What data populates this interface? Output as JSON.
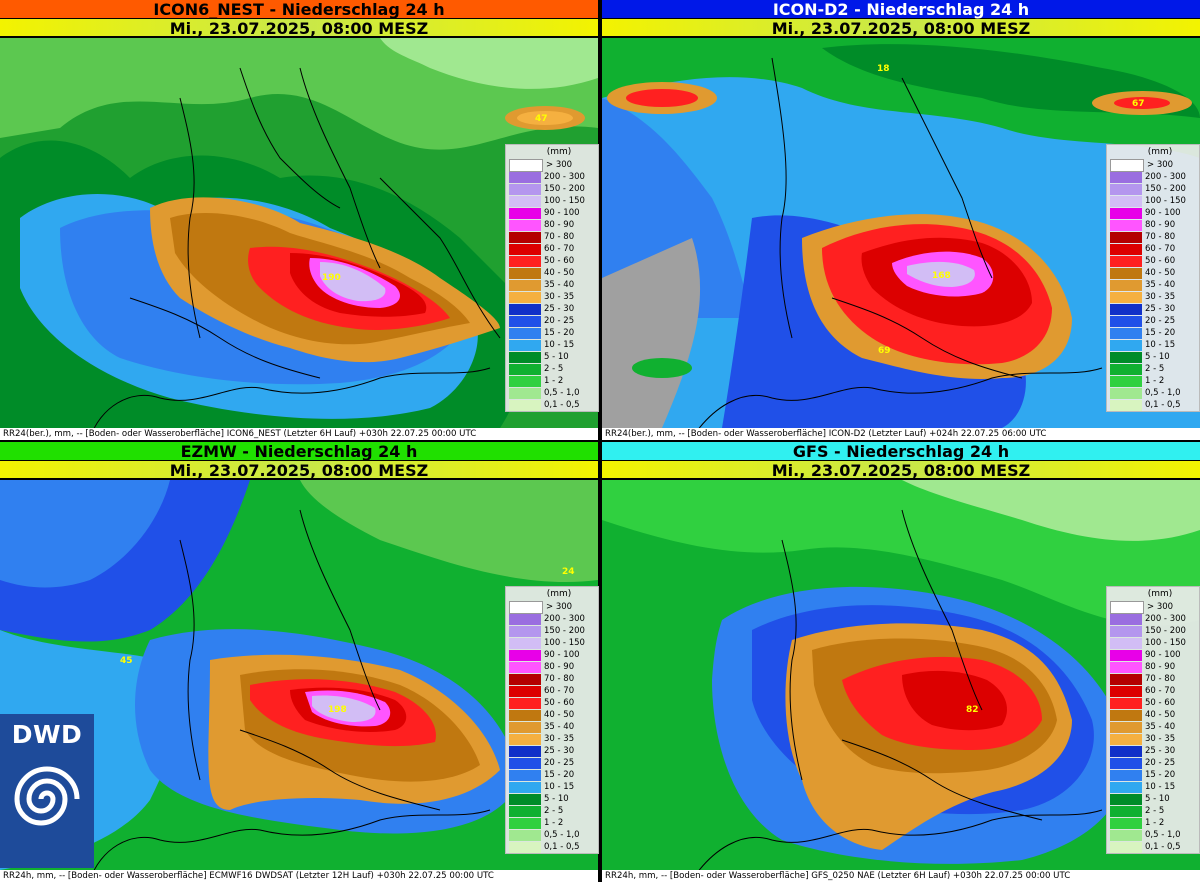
{
  "panels": [
    {
      "title": "ICON6_NEST - Niederschlag 24 h",
      "title_bg": "#ff5a00",
      "date": "Mi., 23.07.2025, 08:00 MESZ",
      "footer": "RR24(ber.), mm, -- [Boden- oder Wasseroberfläche] ICON6_NEST (Letzter  6H Lauf) +030h   22.07.25 00:00 UTC",
      "max_label": "190",
      "extra_labels": [
        "47"
      ]
    },
    {
      "title": "ICON-D2 - Niederschlag 24 h",
      "title_bg": "#0018e8",
      "date": "Mi., 23.07.2025, 08:00 MESZ",
      "footer": "RR24(ber.), mm, -- [Boden- oder Wasseroberfläche] ICON-D2 (Letzter Lauf) +024h   22.07.25 06:00 UTC",
      "max_label": "168",
      "extra_labels": [
        "67",
        "69",
        "18"
      ]
    },
    {
      "title": "EZMW - Niederschlag 24 h",
      "title_bg": "#20e000",
      "date": "Mi., 23.07.2025, 08:00 MESZ",
      "footer": "RR24h, mm, -- [Boden- oder Wasseroberfläche] ECMWF16 DWDSAT (Letzter 12H Lauf) +030h   22.07.25 00:00 UTC",
      "max_label": "198",
      "extra_labels": [
        "45",
        "24"
      ]
    },
    {
      "title": "GFS - Niederschlag 24 h",
      "title_bg": "#30f0f0",
      "date": "Mi., 23.07.2025, 08:00 MESZ",
      "footer": "RR24h, mm, -- [Boden- oder Wasseroberfläche] GFS_0250 NAE (Letzter  6H Lauf) +030h   22.07.25 00:00 UTC",
      "max_label": "82",
      "extra_labels": []
    }
  ],
  "legend": {
    "unit": "(mm)",
    "classes": [
      {
        "label": "> 300",
        "color": "#ffffff"
      },
      {
        "label": "200 - 300",
        "color": "#9a6ee0"
      },
      {
        "label": "150 - 200",
        "color": "#b496ee"
      },
      {
        "label": "100 - 150",
        "color": "#d2bdf5"
      },
      {
        "label": "90 - 100",
        "color": "#e800e8"
      },
      {
        "label": "80 - 90",
        "color": "#ff55ff"
      },
      {
        "label": "70 - 80",
        "color": "#b40000"
      },
      {
        "label": "60 - 70",
        "color": "#dc0000"
      },
      {
        "label": "50 - 60",
        "color": "#ff2020"
      },
      {
        "label": "40 - 50",
        "color": "#c07810"
      },
      {
        "label": "35 - 40",
        "color": "#e09a30"
      },
      {
        "label": "30 - 35",
        "color": "#f5b040"
      },
      {
        "label": "25 - 30",
        "color": "#1030c8"
      },
      {
        "label": "20 - 25",
        "color": "#2050e8"
      },
      {
        "label": "15 - 20",
        "color": "#3080f0"
      },
      {
        "label": "10 - 15",
        "color": "#30a8f0"
      },
      {
        "label": "5 - 10",
        "color": "#008c28"
      },
      {
        "label": "2 - 5",
        "color": "#10b030"
      },
      {
        "label": "1 - 2",
        "color": "#30d040"
      },
      {
        "label": "0,5 - 1,0",
        "color": "#a0e890"
      },
      {
        "label": "0,1 - 0,5",
        "color": "#d8f4c0"
      }
    ]
  },
  "logo": {
    "text": "DWD"
  }
}
